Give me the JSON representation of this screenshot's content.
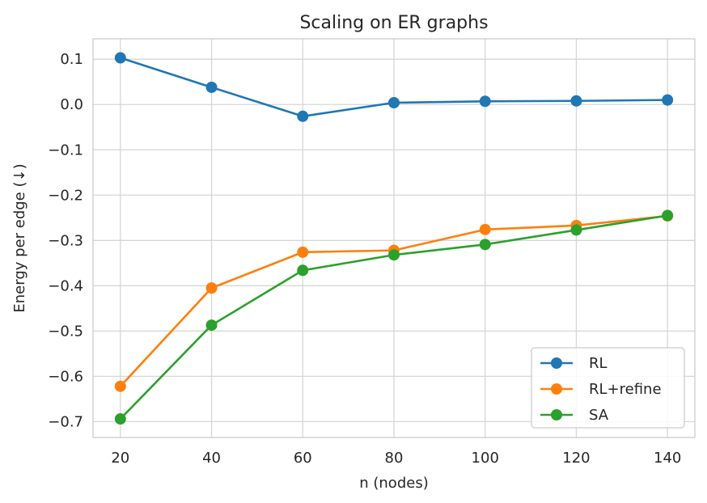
{
  "chart_data": {
    "type": "line",
    "title": "Scaling on ER graphs",
    "xlabel": "n (nodes)",
    "ylabel": "Energy per edge (↓)",
    "x": [
      20,
      40,
      60,
      80,
      100,
      120,
      140
    ],
    "xlim": [
      14,
      146
    ],
    "ylim": [
      -0.735,
      0.145
    ],
    "xticks": [
      20,
      40,
      60,
      80,
      100,
      120,
      140
    ],
    "yticks": [
      0.1,
      0.0,
      -0.1,
      -0.2,
      -0.3,
      -0.4,
      -0.5,
      -0.6,
      -0.7
    ],
    "ytick_labels": [
      "0.1",
      "0.0",
      "−0.1",
      "−0.2",
      "−0.3",
      "−0.4",
      "−0.5",
      "−0.6",
      "−0.7"
    ],
    "grid": true,
    "legend_position": "lower-right",
    "series": [
      {
        "name": "RL",
        "color": "#1f77b4",
        "values": [
          0.103,
          0.038,
          -0.026,
          0.004,
          0.007,
          0.008,
          0.01
        ]
      },
      {
        "name": "RL+refine",
        "color": "#ff7f0e",
        "values": [
          -0.622,
          -0.405,
          -0.326,
          -0.322,
          -0.276,
          -0.267,
          -0.246
        ]
      },
      {
        "name": "SA",
        "color": "#2ca02c",
        "values": [
          -0.694,
          -0.487,
          -0.366,
          -0.332,
          -0.309,
          -0.277,
          -0.245
        ]
      }
    ]
  }
}
